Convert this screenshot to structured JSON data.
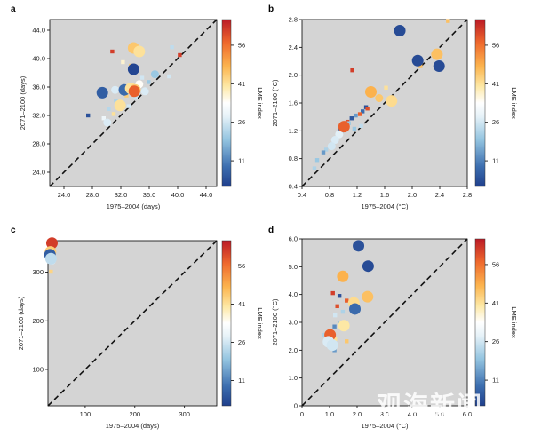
{
  "watermark": "观海新闻",
  "chart_data": [
    {
      "panel": "a",
      "type": "scatter",
      "xlabel": "1975–2004 (days)",
      "ylabel": "2071–2100 (days)",
      "xlim": [
        22,
        45.5
      ],
      "ylim": [
        22,
        45.5
      ],
      "xticks": [
        "24.0",
        "28.0",
        "32.0",
        "36.0",
        "40.0",
        "44.0"
      ],
      "xtick_values": [
        24,
        28,
        32,
        36,
        40,
        44
      ],
      "yticks": [
        "24.0",
        "28.0",
        "32.0",
        "36.0",
        "40.0",
        "44.0"
      ],
      "ytick_values": [
        24,
        28,
        32,
        36,
        40,
        44
      ],
      "colorbar": {
        "label": "LME index",
        "ticks": [
          "11",
          "26",
          "41",
          "56"
        ],
        "tick_values": [
          11,
          26,
          41,
          56
        ],
        "range": [
          1,
          66
        ]
      },
      "reference_line": "1:1",
      "points": [
        {
          "x": 33.8,
          "y": 41.5,
          "lme": 45,
          "s": 3
        },
        {
          "x": 34.6,
          "y": 41.0,
          "lme": 41,
          "s": 3
        },
        {
          "x": 30.8,
          "y": 41.0,
          "lme": 62,
          "s": 1
        },
        {
          "x": 32.3,
          "y": 39.5,
          "lme": 37,
          "s": 1
        },
        {
          "x": 33.8,
          "y": 38.5,
          "lme": 2,
          "s": 3
        },
        {
          "x": 33.4,
          "y": 39.0,
          "lme": 44,
          "s": 1
        },
        {
          "x": 40.3,
          "y": 40.5,
          "lme": 62,
          "s": 1
        },
        {
          "x": 39.2,
          "y": 41.6,
          "lme": 24,
          "s": 1
        },
        {
          "x": 38.8,
          "y": 37.5,
          "lme": 26,
          "s": 1
        },
        {
          "x": 36.8,
          "y": 37.8,
          "lme": 20,
          "s": 2
        },
        {
          "x": 35.9,
          "y": 36.7,
          "lme": 20,
          "s": 1
        },
        {
          "x": 35.0,
          "y": 37.3,
          "lme": 26,
          "s": 1
        },
        {
          "x": 29.4,
          "y": 35.2,
          "lme": 6,
          "s": 3
        },
        {
          "x": 31.2,
          "y": 35.6,
          "lme": 27,
          "s": 2
        },
        {
          "x": 32.5,
          "y": 35.6,
          "lme": 8,
          "s": 3
        },
        {
          "x": 33.4,
          "y": 35.8,
          "lme": 41,
          "s": 3
        },
        {
          "x": 34.0,
          "y": 35.6,
          "lme": 44,
          "s": 3
        },
        {
          "x": 33.9,
          "y": 35.4,
          "lme": 58,
          "s": 3
        },
        {
          "x": 34.6,
          "y": 36.4,
          "lme": 34,
          "s": 2
        },
        {
          "x": 35.4,
          "y": 35.4,
          "lme": 27,
          "s": 2
        },
        {
          "x": 34.1,
          "y": 34.5,
          "lme": 25,
          "s": 1
        },
        {
          "x": 32.8,
          "y": 34.8,
          "lme": 44,
          "s": 1
        },
        {
          "x": 31.3,
          "y": 34.1,
          "lme": 22,
          "s": 1
        },
        {
          "x": 31.9,
          "y": 33.4,
          "lme": 41,
          "s": 3
        },
        {
          "x": 33.1,
          "y": 33.3,
          "lme": 26,
          "s": 1
        },
        {
          "x": 30.3,
          "y": 32.9,
          "lme": 23,
          "s": 1
        },
        {
          "x": 29.6,
          "y": 31.6,
          "lme": 30,
          "s": 1
        },
        {
          "x": 30.1,
          "y": 31.0,
          "lme": 27,
          "s": 2
        },
        {
          "x": 27.4,
          "y": 32.0,
          "lme": 4,
          "s": 1
        },
        {
          "x": 31.0,
          "y": 32.2,
          "lme": 41,
          "s": 1
        }
      ]
    },
    {
      "panel": "b",
      "type": "scatter",
      "xlabel": "1975–2004 (°C)",
      "ylabel": "2071–2100 (°C)",
      "xlim": [
        0.4,
        2.8
      ],
      "ylim": [
        0.4,
        2.8
      ],
      "xticks": [
        "0.4",
        "0.8",
        "1.2",
        "1.6",
        "2.0",
        "2.4",
        "2.8"
      ],
      "xtick_values": [
        0.4,
        0.8,
        1.2,
        1.6,
        2.0,
        2.4,
        2.8
      ],
      "yticks": [
        "0.4",
        "0.8",
        "1.2",
        "1.6",
        "2.0",
        "2.4",
        "2.8"
      ],
      "ytick_values": [
        0.4,
        0.8,
        1.2,
        1.6,
        2.0,
        2.4,
        2.8
      ],
      "colorbar": {
        "label": "LME index",
        "ticks": [
          "11",
          "26",
          "41",
          "56"
        ],
        "tick_values": [
          11,
          26,
          41,
          56
        ],
        "range": [
          1,
          66
        ]
      },
      "reference_line": "1:1",
      "points": [
        {
          "x": 1.82,
          "y": 2.64,
          "lme": 3,
          "s": 3
        },
        {
          "x": 2.52,
          "y": 2.78,
          "lme": 46,
          "s": 1
        },
        {
          "x": 2.36,
          "y": 2.3,
          "lme": 46,
          "s": 3
        },
        {
          "x": 2.08,
          "y": 2.21,
          "lme": 3,
          "s": 3
        },
        {
          "x": 2.39,
          "y": 2.13,
          "lme": 3,
          "s": 3
        },
        {
          "x": 2.12,
          "y": 2.13,
          "lme": 46,
          "s": 1
        },
        {
          "x": 1.13,
          "y": 2.07,
          "lme": 62,
          "s": 1
        },
        {
          "x": 1.4,
          "y": 1.76,
          "lme": 48,
          "s": 3
        },
        {
          "x": 1.62,
          "y": 1.82,
          "lme": 41,
          "s": 1
        },
        {
          "x": 1.52,
          "y": 1.67,
          "lme": 45,
          "s": 2
        },
        {
          "x": 1.7,
          "y": 1.63,
          "lme": 42,
          "s": 3
        },
        {
          "x": 1.33,
          "y": 1.54,
          "lme": 4,
          "s": 1
        },
        {
          "x": 1.35,
          "y": 1.52,
          "lme": 60,
          "s": 1
        },
        {
          "x": 1.28,
          "y": 1.48,
          "lme": 8,
          "s": 1
        },
        {
          "x": 1.24,
          "y": 1.44,
          "lme": 58,
          "s": 1
        },
        {
          "x": 1.18,
          "y": 1.42,
          "lme": 14,
          "s": 1
        },
        {
          "x": 1.12,
          "y": 1.38,
          "lme": 5,
          "s": 1
        },
        {
          "x": 1.06,
          "y": 1.33,
          "lme": 60,
          "s": 1
        },
        {
          "x": 1.08,
          "y": 1.31,
          "lme": 20,
          "s": 1
        },
        {
          "x": 1.01,
          "y": 1.26,
          "lme": 58,
          "s": 3
        },
        {
          "x": 0.98,
          "y": 1.23,
          "lme": 8,
          "s": 2
        },
        {
          "x": 1.16,
          "y": 1.23,
          "lme": 20,
          "s": 1
        },
        {
          "x": 0.94,
          "y": 1.15,
          "lme": 28,
          "s": 2
        },
        {
          "x": 0.88,
          "y": 1.07,
          "lme": 27,
          "s": 2
        },
        {
          "x": 0.83,
          "y": 0.98,
          "lme": 26,
          "s": 2
        },
        {
          "x": 0.75,
          "y": 0.93,
          "lme": 22,
          "s": 1
        },
        {
          "x": 0.71,
          "y": 0.89,
          "lme": 14,
          "s": 1
        },
        {
          "x": 0.62,
          "y": 0.78,
          "lme": 20,
          "s": 1
        },
        {
          "x": 0.58,
          "y": 0.66,
          "lme": 22,
          "s": 1
        },
        {
          "x": 1.26,
          "y": 1.27,
          "lme": 24,
          "s": 1
        }
      ]
    },
    {
      "panel": "c",
      "type": "scatter",
      "xlabel": "1975–2004 (days)",
      "ylabel": "2071–2100 (days)",
      "xlim": [
        25,
        365
      ],
      "ylim": [
        25,
        365
      ],
      "xticks": [
        "100",
        "200",
        "300"
      ],
      "xtick_values": [
        100,
        200,
        300
      ],
      "yticks": [
        "100",
        "200",
        "300"
      ],
      "ytick_values": [
        100,
        200,
        300
      ],
      "colorbar": {
        "label": "LME index",
        "ticks": [
          "11",
          "26",
          "41",
          "56"
        ],
        "tick_values": [
          11,
          26,
          41,
          56
        ],
        "range": [
          1,
          66
        ]
      },
      "reference_line": "1:1",
      "points": [
        {
          "x": 33,
          "y": 360,
          "lme": 62,
          "s": 3
        },
        {
          "x": 32,
          "y": 350,
          "lme": 46,
          "s": 2
        },
        {
          "x": 30,
          "y": 342,
          "lme": 44,
          "s": 3
        },
        {
          "x": 29,
          "y": 336,
          "lme": 6,
          "s": 3
        },
        {
          "x": 31,
          "y": 328,
          "lme": 24,
          "s": 3
        },
        {
          "x": 33,
          "y": 324,
          "lme": 27,
          "s": 2
        },
        {
          "x": 31,
          "y": 301,
          "lme": 43,
          "s": 1
        },
        {
          "x": 34,
          "y": 356,
          "lme": 26,
          "s": 1
        }
      ]
    },
    {
      "panel": "d",
      "type": "scatter",
      "xlabel": "1975–2004 (°C)",
      "ylabel": "2071–2100 (°C)",
      "xlim": [
        0,
        6
      ],
      "ylim": [
        0,
        6
      ],
      "xticks": [
        "0",
        "1.0",
        "2.0",
        "3.0",
        "4.0",
        "5.0",
        "6.0"
      ],
      "xtick_values": [
        0,
        1,
        2,
        3,
        4,
        5,
        6
      ],
      "yticks": [
        "0",
        "1.0",
        "2.0",
        "3.0",
        "4.0",
        "5.0",
        "6.0"
      ],
      "ytick_values": [
        0,
        1,
        2,
        3,
        4,
        5,
        6
      ],
      "colorbar": {
        "label": "LME index",
        "ticks": [
          "11",
          "26",
          "41",
          "56"
        ],
        "tick_values": [
          11,
          26,
          41,
          56
        ],
        "range": [
          1,
          66
        ]
      },
      "reference_line": "1:1",
      "points": [
        {
          "x": 2.05,
          "y": 5.75,
          "lme": 4,
          "s": 3
        },
        {
          "x": 2.4,
          "y": 5.02,
          "lme": 3,
          "s": 3
        },
        {
          "x": 1.48,
          "y": 4.65,
          "lme": 48,
          "s": 3
        },
        {
          "x": 1.12,
          "y": 4.05,
          "lme": 62,
          "s": 1
        },
        {
          "x": 1.36,
          "y": 3.95,
          "lme": 4,
          "s": 1
        },
        {
          "x": 2.38,
          "y": 3.92,
          "lme": 46,
          "s": 3
        },
        {
          "x": 1.62,
          "y": 3.78,
          "lme": 58,
          "s": 1
        },
        {
          "x": 1.88,
          "y": 3.7,
          "lme": 42,
          "s": 3
        },
        {
          "x": 1.28,
          "y": 3.58,
          "lme": 60,
          "s": 1
        },
        {
          "x": 1.92,
          "y": 3.48,
          "lme": 8,
          "s": 3
        },
        {
          "x": 1.48,
          "y": 3.38,
          "lme": 22,
          "s": 1
        },
        {
          "x": 1.2,
          "y": 3.25,
          "lme": 26,
          "s": 1
        },
        {
          "x": 1.52,
          "y": 2.88,
          "lme": 40,
          "s": 3
        },
        {
          "x": 1.38,
          "y": 2.95,
          "lme": 18,
          "s": 1
        },
        {
          "x": 1.18,
          "y": 2.85,
          "lme": 12,
          "s": 1
        },
        {
          "x": 1.08,
          "y": 2.7,
          "lme": 24,
          "s": 1
        },
        {
          "x": 1.02,
          "y": 2.55,
          "lme": 58,
          "s": 3
        },
        {
          "x": 1.2,
          "y": 2.4,
          "lme": 41,
          "s": 1
        },
        {
          "x": 0.96,
          "y": 2.3,
          "lme": 27,
          "s": 3
        },
        {
          "x": 1.1,
          "y": 2.18,
          "lme": 26,
          "s": 3
        },
        {
          "x": 1.18,
          "y": 2.0,
          "lme": 14,
          "s": 1
        },
        {
          "x": 1.62,
          "y": 2.32,
          "lme": 45,
          "s": 1
        },
        {
          "x": 0.8,
          "y": 2.55,
          "lme": 22,
          "s": 1
        }
      ]
    }
  ]
}
